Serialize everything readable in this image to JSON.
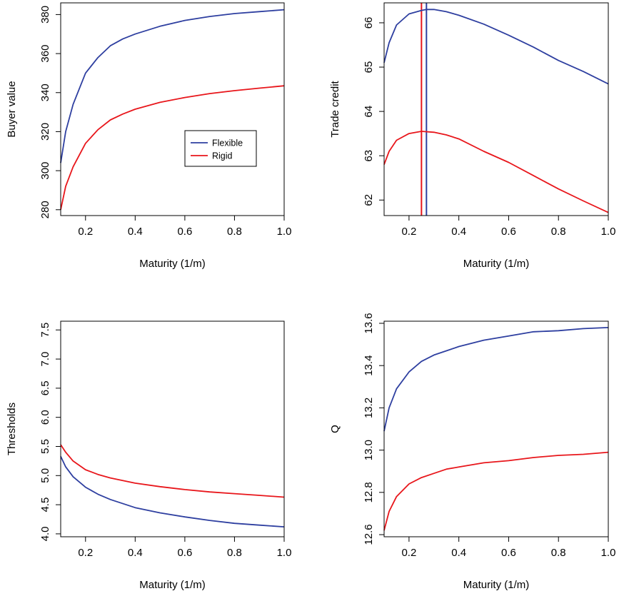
{
  "chart_data": [
    {
      "type": "line",
      "title": "",
      "xlabel": "Maturity (1/m)",
      "ylabel": "Buyer value",
      "xlim": [
        0.1,
        1.0
      ],
      "ylim": [
        277,
        386
      ],
      "xticks": [
        0.2,
        0.4,
        0.6,
        0.8,
        1.0
      ],
      "xtick_labels": [
        "0.2",
        "0.4",
        "0.6",
        "0.8",
        "1.0"
      ],
      "yticks": [
        280,
        300,
        320,
        340,
        360,
        380
      ],
      "ytick_labels": [
        "280",
        "300",
        "320",
        "340",
        "360",
        "380"
      ],
      "grid": false,
      "legend": {
        "placement": "center-right",
        "entries": [
          "Flexible",
          "Rigid"
        ]
      },
      "series": [
        {
          "name": "Flexible",
          "color": "#2e3fa0",
          "x": [
            0.1,
            0.12,
            0.15,
            0.2,
            0.25,
            0.3,
            0.35,
            0.4,
            0.5,
            0.6,
            0.7,
            0.8,
            0.9,
            1.0
          ],
          "y": [
            304,
            320,
            334,
            350,
            358,
            364,
            367.5,
            370,
            374,
            377,
            379,
            380.5,
            381.5,
            382.5
          ]
        },
        {
          "name": "Rigid",
          "color": "#e8161b",
          "x": [
            0.1,
            0.12,
            0.15,
            0.2,
            0.25,
            0.3,
            0.35,
            0.4,
            0.5,
            0.6,
            0.7,
            0.8,
            0.9,
            1.0
          ],
          "y": [
            280,
            292,
            302,
            314,
            321,
            326,
            329,
            331.5,
            335,
            337.5,
            339.5,
            341,
            342.3,
            343.5
          ]
        }
      ]
    },
    {
      "type": "line",
      "title": "",
      "xlabel": "Maturity (1/m)",
      "ylabel": "Trade credit",
      "xlim": [
        0.1,
        1.0
      ],
      "ylim": [
        61.65,
        66.45
      ],
      "xticks": [
        0.2,
        0.4,
        0.6,
        0.8,
        1.0
      ],
      "xtick_labels": [
        "0.2",
        "0.4",
        "0.6",
        "0.8",
        "1.0"
      ],
      "yticks": [
        62,
        63,
        64,
        65,
        66
      ],
      "ytick_labels": [
        "62",
        "63",
        "64",
        "65",
        "66"
      ],
      "grid": false,
      "vlines": [
        {
          "x": 0.25,
          "color": "#e8161b"
        },
        {
          "x": 0.27,
          "color": "#2e3fa0"
        }
      ],
      "series": [
        {
          "name": "Flexible",
          "color": "#2e3fa0",
          "x": [
            0.1,
            0.12,
            0.15,
            0.2,
            0.25,
            0.27,
            0.3,
            0.35,
            0.4,
            0.5,
            0.6,
            0.7,
            0.8,
            0.9,
            1.0
          ],
          "y": [
            65.1,
            65.55,
            65.95,
            66.2,
            66.28,
            66.3,
            66.3,
            66.25,
            66.17,
            65.97,
            65.72,
            65.45,
            65.15,
            64.9,
            64.62
          ]
        },
        {
          "name": "Rigid",
          "color": "#e8161b",
          "x": [
            0.1,
            0.12,
            0.15,
            0.2,
            0.25,
            0.3,
            0.35,
            0.4,
            0.5,
            0.6,
            0.7,
            0.8,
            0.9,
            1.0
          ],
          "y": [
            62.8,
            63.1,
            63.35,
            63.5,
            63.55,
            63.53,
            63.47,
            63.38,
            63.1,
            62.85,
            62.55,
            62.25,
            61.98,
            61.72
          ]
        }
      ]
    },
    {
      "type": "line",
      "title": "",
      "xlabel": "Maturity (1/m)",
      "ylabel": "Thresholds",
      "xlim": [
        0.1,
        1.0
      ],
      "ylim": [
        3.95,
        7.65
      ],
      "xticks": [
        0.2,
        0.4,
        0.6,
        0.8,
        1.0
      ],
      "xtick_labels": [
        "0.2",
        "0.4",
        "0.6",
        "0.8",
        "1.0"
      ],
      "yticks": [
        4.0,
        4.5,
        5.0,
        5.5,
        6.0,
        6.5,
        7.0,
        7.5
      ],
      "ytick_labels": [
        "4.0",
        "4.5",
        "5.0",
        "5.5",
        "6.0",
        "6.5",
        "7.0",
        "7.5"
      ],
      "grid": false,
      "series": [
        {
          "name": "Flexible",
          "color": "#2e3fa0",
          "x": [
            0.1,
            0.12,
            0.15,
            0.2,
            0.25,
            0.3,
            0.4,
            0.5,
            0.6,
            0.7,
            0.8,
            0.9,
            1.0
          ],
          "y": [
            5.33,
            5.15,
            4.98,
            4.8,
            4.68,
            4.59,
            4.45,
            4.36,
            4.29,
            4.23,
            4.18,
            4.15,
            4.12
          ]
        },
        {
          "name": "Rigid",
          "color": "#e8161b",
          "x": [
            0.1,
            0.12,
            0.15,
            0.2,
            0.25,
            0.3,
            0.4,
            0.5,
            0.6,
            0.7,
            0.8,
            0.9,
            1.0
          ],
          "y": [
            5.53,
            5.4,
            5.25,
            5.1,
            5.02,
            4.96,
            4.87,
            4.81,
            4.76,
            4.72,
            4.69,
            4.66,
            4.63
          ]
        }
      ]
    },
    {
      "type": "line",
      "title": "",
      "xlabel": "Maturity (1/m)",
      "ylabel": "Q",
      "xlim": [
        0.1,
        1.0
      ],
      "ylim": [
        12.59,
        13.61
      ],
      "xticks": [
        0.2,
        0.4,
        0.6,
        0.8,
        1.0
      ],
      "xtick_labels": [
        "0.2",
        "0.4",
        "0.6",
        "0.8",
        "1.0"
      ],
      "yticks": [
        12.6,
        12.8,
        13.0,
        13.2,
        13.4,
        13.6
      ],
      "ytick_labels": [
        "12.6",
        "12.8",
        "13.0",
        "13.2",
        "13.4",
        "13.6"
      ],
      "grid": false,
      "series": [
        {
          "name": "Flexible",
          "color": "#2e3fa0",
          "x": [
            0.1,
            0.12,
            0.15,
            0.2,
            0.25,
            0.3,
            0.35,
            0.4,
            0.5,
            0.6,
            0.7,
            0.8,
            0.9,
            1.0
          ],
          "y": [
            13.09,
            13.2,
            13.29,
            13.37,
            13.42,
            13.45,
            13.47,
            13.49,
            13.52,
            13.54,
            13.56,
            13.565,
            13.575,
            13.58
          ]
        },
        {
          "name": "Rigid",
          "color": "#e8161b",
          "x": [
            0.1,
            0.12,
            0.15,
            0.2,
            0.25,
            0.3,
            0.35,
            0.4,
            0.5,
            0.6,
            0.7,
            0.8,
            0.9,
            1.0
          ],
          "y": [
            12.62,
            12.71,
            12.78,
            12.84,
            12.87,
            12.89,
            12.91,
            12.92,
            12.94,
            12.95,
            12.965,
            12.975,
            12.98,
            12.99
          ]
        }
      ]
    }
  ]
}
